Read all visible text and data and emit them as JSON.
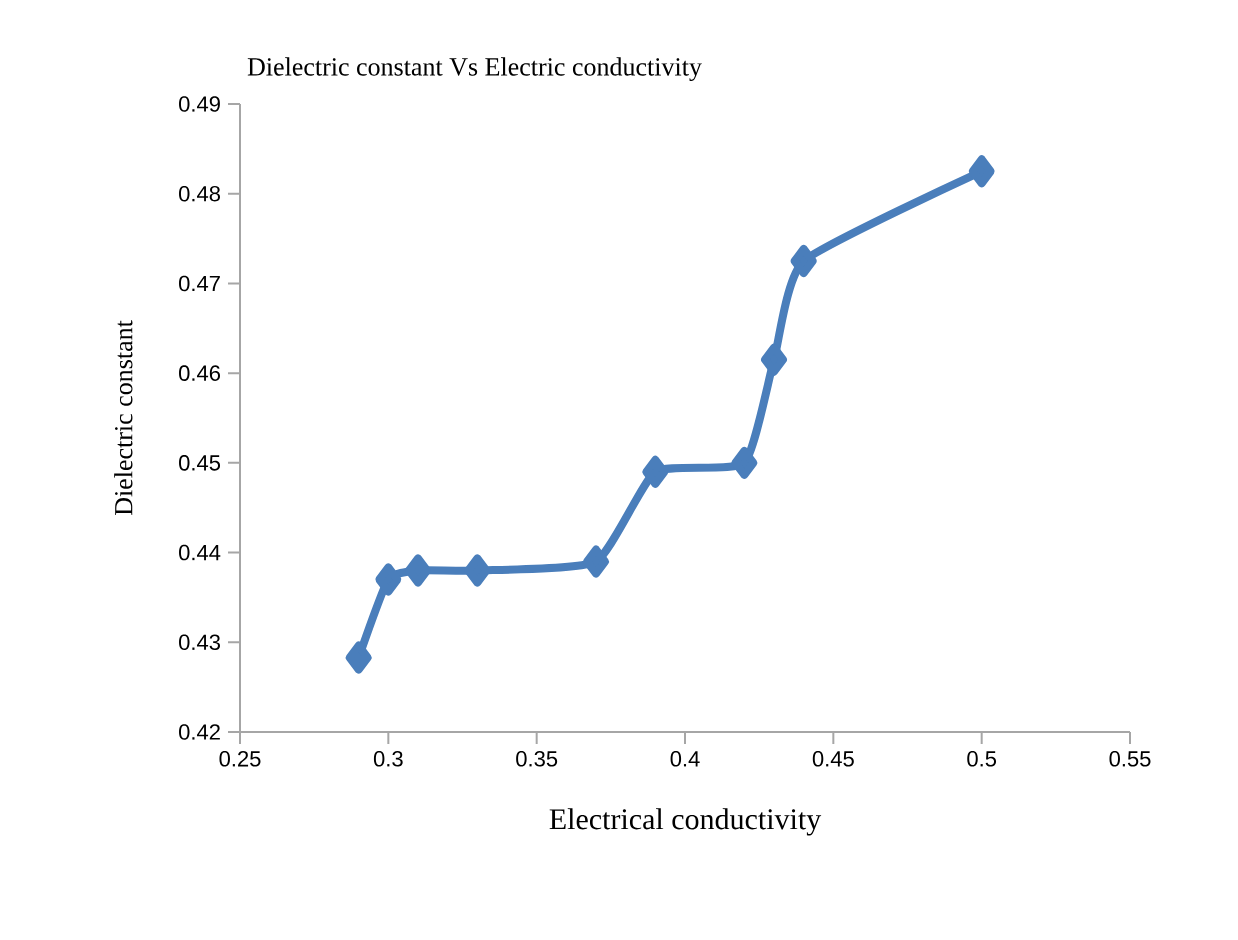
{
  "chart_data": {
    "type": "line",
    "title": "Dielectric constant Vs Electric conductivity",
    "xlabel": "Electrical  conductivity",
    "ylabel": "Dielectric constant",
    "x": [
      0.29,
      0.3,
      0.31,
      0.33,
      0.37,
      0.39,
      0.42,
      0.43,
      0.44,
      0.5
    ],
    "series": [
      {
        "color": "#4a7ebb",
        "values": [
          0.4283,
          0.437,
          0.438,
          0.438,
          0.439,
          0.449,
          0.45,
          0.4615,
          0.4725,
          0.4825
        ]
      }
    ],
    "xlim": [
      0.25,
      0.55
    ],
    "xticks": [
      0.25,
      0.3,
      0.35,
      0.4,
      0.45,
      0.5,
      0.55
    ],
    "ylim": [
      0.42,
      0.49
    ],
    "yticks": [
      0.42,
      0.43,
      0.44,
      0.45,
      0.46,
      0.47,
      0.48,
      0.49
    ],
    "marker": "diamond",
    "grid": false
  }
}
